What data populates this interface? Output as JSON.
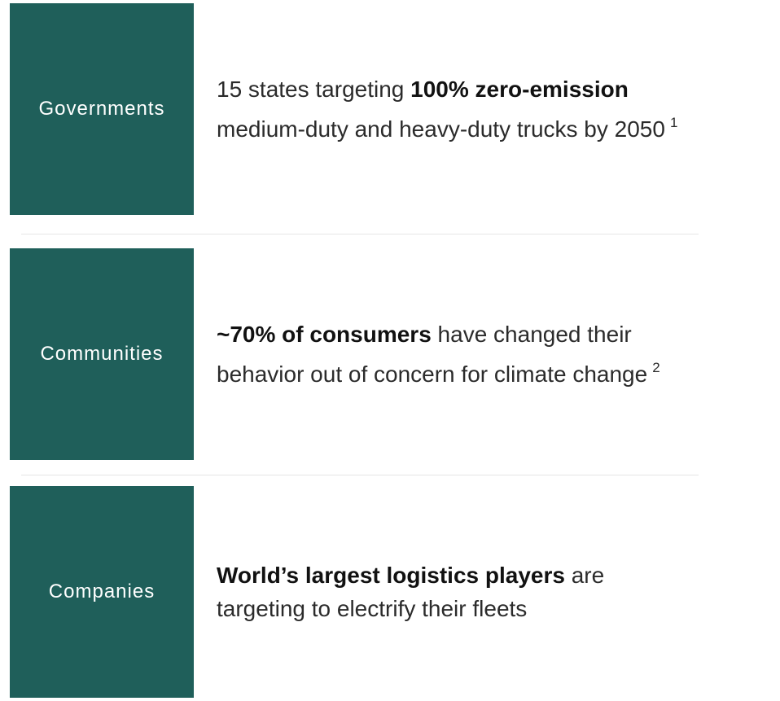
{
  "rows": [
    {
      "label": "Governments",
      "lines": [
        [
          {
            "text": "15 states targeting ",
            "bold": false
          },
          {
            "text": "100% zero-emission",
            "bold": true
          }
        ],
        [
          {
            "text": "medium-duty and heavy-duty trucks by 2050",
            "bold": false
          }
        ]
      ],
      "note": "1"
    },
    {
      "label": "Communities",
      "lines": [
        [
          {
            "text": "~70% of consumers",
            "bold": true
          },
          {
            "text": " have changed their",
            "bold": false
          }
        ],
        [
          {
            "text": "behavior out of concern for climate change",
            "bold": false
          }
        ]
      ],
      "note": "2"
    },
    {
      "label": "Companies",
      "lines": [
        [
          {
            "text": "World’s largest logistics players",
            "bold": true
          },
          {
            "text": " are",
            "bold": false
          }
        ],
        [
          {
            "text": "targeting to electrify their fleets",
            "bold": false
          }
        ]
      ]
    }
  ]
}
